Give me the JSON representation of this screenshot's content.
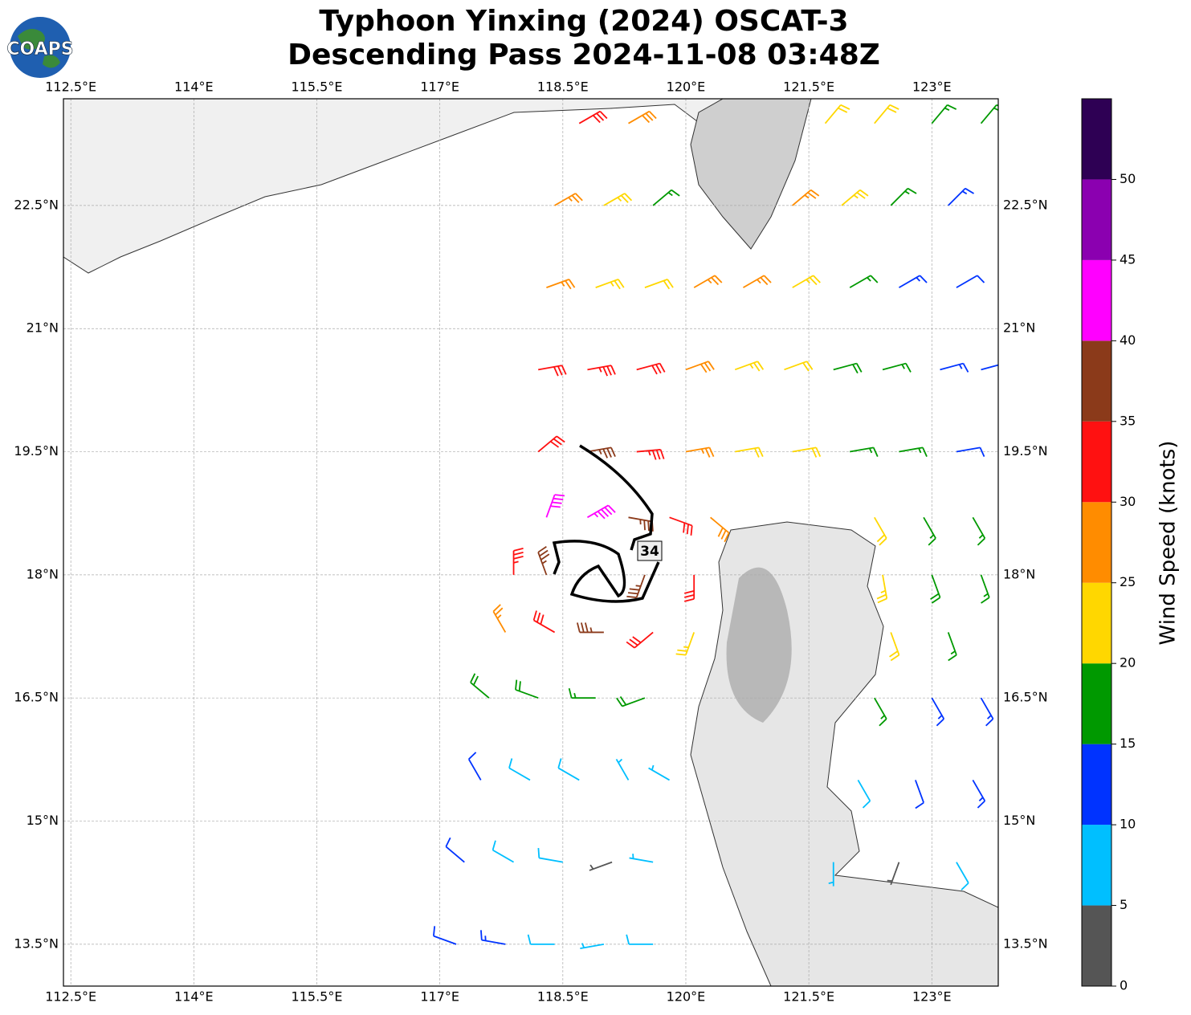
{
  "logo": "COAPS",
  "chart_data": {
    "type": "wind-barb-map",
    "title": "Typhoon Yinxing (2024) OSCAT-3",
    "subtitle": "Descending Pass 2024-11-08 03:48Z",
    "contour_label": "34",
    "xlim": [
      112.41,
      123.81
    ],
    "ylim": [
      12.99,
      23.8
    ],
    "xticks": [
      {
        "value": 112.5,
        "label": "112.5°E"
      },
      {
        "value": 114,
        "label": "114°E"
      },
      {
        "value": 115.5,
        "label": "115.5°E"
      },
      {
        "value": 117,
        "label": "117°E"
      },
      {
        "value": 118.5,
        "label": "118.5°E"
      },
      {
        "value": 120,
        "label": "120°E"
      },
      {
        "value": 121.5,
        "label": "121.5°E"
      },
      {
        "value": 123,
        "label": "123°E"
      }
    ],
    "yticks": [
      {
        "value": 13.5,
        "label": "13.5°N"
      },
      {
        "value": 15,
        "label": "15°N"
      },
      {
        "value": 16.5,
        "label": "16.5°N"
      },
      {
        "value": 18,
        "label": "18°N"
      },
      {
        "value": 19.5,
        "label": "19.5°N"
      },
      {
        "value": 21,
        "label": "21°N"
      },
      {
        "value": 22.5,
        "label": "22.5°N"
      }
    ],
    "grid": true,
    "colorbar": {
      "label": "Wind Speed (knots)",
      "clim": [
        0,
        55
      ],
      "ticks": [
        0,
        5,
        10,
        15,
        20,
        25,
        30,
        35,
        40,
        45,
        50
      ],
      "colors": [
        "#555555",
        "#00bfff",
        "#0033ff",
        "#009900",
        "#ffd700",
        "#ff8c00",
        "#ff1111",
        "#8b3a1a",
        "#ff00ff",
        "#8b00b0",
        "#2e0054"
      ]
    },
    "barbs": {
      "lon": [
        118.7,
        119.3,
        121.7,
        122.3,
        123.0,
        123.6,
        118.4,
        119.0,
        119.6,
        121.3,
        121.9,
        122.5,
        123.2,
        118.3,
        118.9,
        119.5,
        120.1,
        120.7,
        121.3,
        122.0,
        122.6,
        123.3,
        118.2,
        118.8,
        119.4,
        120.0,
        120.6,
        121.2,
        121.8,
        122.4,
        123.1,
        123.6,
        118.2,
        118.8,
        119.4,
        120.0,
        120.6,
        121.3,
        122.0,
        122.6,
        123.3,
        118.3,
        118.8,
        119.3,
        119.8,
        120.3,
        122.3,
        122.9,
        123.5,
        117.9,
        118.3,
        119.5,
        120.1,
        122.4,
        123.0,
        123.6,
        117.8,
        118.4,
        119.0,
        119.6,
        120.1,
        122.5,
        123.2,
        117.6,
        118.2,
        118.9,
        119.5,
        122.3,
        123.0,
        123.6,
        117.5,
        118.1,
        118.7,
        119.3,
        119.8,
        122.1,
        122.8,
        123.5,
        117.3,
        117.9,
        118.5,
        119.1,
        119.6,
        121.8,
        122.6,
        123.3,
        117.2,
        117.8,
        118.4,
        119.0,
        119.6
      ],
      "lat": [
        23.5,
        23.5,
        23.5,
        23.5,
        23.5,
        23.5,
        22.5,
        22.5,
        22.5,
        22.5,
        22.5,
        22.5,
        22.5,
        21.5,
        21.5,
        21.5,
        21.5,
        21.5,
        21.5,
        21.5,
        21.5,
        21.5,
        20.5,
        20.5,
        20.5,
        20.5,
        20.5,
        20.5,
        20.5,
        20.5,
        20.5,
        20.5,
        19.5,
        19.5,
        19.5,
        19.5,
        19.5,
        19.5,
        19.5,
        19.5,
        19.5,
        18.7,
        18.7,
        18.7,
        18.7,
        18.7,
        18.7,
        18.7,
        18.7,
        18.0,
        18.0,
        18.0,
        18.0,
        18.0,
        18.0,
        18.0,
        17.3,
        17.3,
        17.3,
        17.3,
        17.3,
        17.3,
        17.3,
        16.5,
        16.5,
        16.5,
        16.5,
        16.5,
        16.5,
        16.5,
        15.5,
        15.5,
        15.5,
        15.5,
        15.5,
        15.5,
        15.5,
        15.5,
        14.5,
        14.5,
        14.5,
        14.5,
        14.5,
        14.5,
        14.5,
        14.5,
        13.5,
        13.5,
        13.5,
        13.5,
        13.5
      ],
      "speed": [
        30,
        28,
        22,
        20,
        17,
        16,
        27,
        24,
        17,
        26,
        24,
        17,
        13,
        26,
        23,
        22,
        25,
        26,
        24,
        17,
        13,
        12,
        30,
        33,
        32,
        28,
        24,
        22,
        18,
        15,
        13,
        12,
        31,
        37,
        33,
        26,
        22,
        20,
        17,
        16,
        12,
        42,
        44,
        36,
        31,
        28,
        21,
        17,
        16,
        33,
        37,
        37,
        31,
        24,
        18,
        16,
        27,
        32,
        35,
        30,
        23,
        22,
        16,
        18,
        18,
        17,
        19,
        16,
        13,
        14,
        12,
        9,
        8,
        7,
        6,
        9,
        11,
        13,
        12,
        9,
        8,
        4,
        7,
        6,
        4,
        9,
        12,
        13,
        9,
        6,
        8
      ],
      "direction": [
        60,
        60,
        40,
        40,
        40,
        40,
        60,
        60,
        50,
        50,
        50,
        45,
        45,
        70,
        70,
        70,
        60,
        60,
        60,
        60,
        60,
        60,
        80,
        80,
        75,
        70,
        70,
        70,
        75,
        75,
        75,
        75,
        50,
        80,
        85,
        80,
        80,
        80,
        80,
        80,
        80,
        20,
        60,
        100,
        110,
        130,
        150,
        150,
        150,
        360,
        340,
        200,
        180,
        170,
        160,
        160,
        330,
        300,
        270,
        230,
        200,
        160,
        160,
        310,
        290,
        270,
        250,
        150,
        150,
        150,
        330,
        300,
        300,
        330,
        300,
        150,
        160,
        150,
        310,
        300,
        280,
        250,
        280,
        180,
        200,
        150,
        290,
        280,
        270,
        260,
        270
      ]
    }
  }
}
